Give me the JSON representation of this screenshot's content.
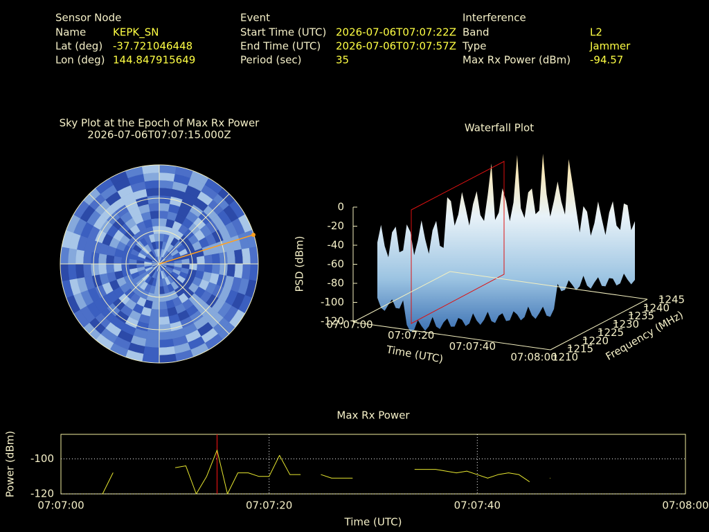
{
  "header": {
    "sensor": {
      "heading": "Sensor Node",
      "rows": [
        [
          "Name",
          "KEPK_SN"
        ],
        [
          "Lat (deg)",
          "-37.721046448"
        ],
        [
          "Lon (deg)",
          "144.847915649"
        ]
      ]
    },
    "event": {
      "heading": "Event",
      "rows": [
        [
          "Start Time (UTC)",
          "2026-07-06T07:07:22Z"
        ],
        [
          "End Time (UTC)",
          "2026-07-06T07:07:57Z"
        ],
        [
          "Period (sec)",
          "35"
        ]
      ]
    },
    "interference": {
      "heading": "Interference",
      "rows": [
        [
          "Band",
          "L2"
        ],
        [
          "Type",
          "Jammer"
        ],
        [
          "Max Rx Power (dBm)",
          "-94.57"
        ]
      ]
    }
  },
  "sky_plot": {
    "title": "Sky Plot at the Epoch of Max Rx Power",
    "subtitle": "2026-07-06T07:07:15.000Z"
  },
  "waterfall": {
    "title": "Waterfall Plot",
    "z_label": "PSD (dBm)",
    "zticks": [
      0,
      -20,
      -40,
      -60,
      -80,
      -100,
      -120
    ],
    "x_label": "Time (UTC)",
    "xticks": [
      "07:07:00",
      "07:07:20",
      "07:07:40",
      "07:08:00"
    ],
    "y_label": "Frequency (MHz)",
    "yticks": [
      1210,
      1215,
      1220,
      1225,
      1230,
      1235,
      1240,
      1245
    ]
  },
  "chart_data": {
    "type": "line",
    "title": "Max Rx Power",
    "x_label": "Time (UTC)",
    "y_label": "Power (dBm)",
    "x": [
      "07:07:04",
      "07:07:05",
      "07:07:06",
      "07:07:07",
      "07:07:08",
      "07:07:09",
      "07:07:10",
      "07:07:11",
      "07:07:12",
      "07:07:13",
      "07:07:14",
      "07:07:15",
      "07:07:16",
      "07:07:17",
      "07:07:18",
      "07:07:19",
      "07:07:20",
      "07:07:21",
      "07:07:22",
      "07:07:23",
      "07:07:24",
      "07:07:25",
      "07:07:26",
      "07:07:27",
      "07:07:28",
      "07:07:29",
      "07:07:30",
      "07:07:31",
      "07:07:32",
      "07:07:33",
      "07:07:34",
      "07:07:35",
      "07:07:36",
      "07:07:37",
      "07:07:38",
      "07:07:39",
      "07:07:40",
      "07:07:41",
      "07:07:42",
      "07:07:43",
      "07:07:44",
      "07:07:45",
      "07:07:46",
      "07:07:47"
    ],
    "series": [
      {
        "name": "Max Rx Power",
        "color": "#e8e830",
        "values": [
          -120,
          -108,
          null,
          null,
          null,
          null,
          null,
          -105,
          -104,
          -120,
          -110,
          -95,
          -120,
          -108,
          -108,
          -110,
          -110,
          -98,
          -109,
          -109,
          null,
          -109,
          -111,
          -111,
          -111,
          null,
          null,
          null,
          null,
          null,
          -106,
          -106,
          -106,
          -107,
          -108,
          -107,
          -109,
          -111,
          -109,
          -108,
          -109,
          -113,
          null,
          -111
        ]
      }
    ],
    "xlim": [
      "07:07:00",
      "07:08:00"
    ],
    "xticks": [
      "07:07:00",
      "07:07:20",
      "07:07:40",
      "07:08:00"
    ],
    "ylim": [
      -120,
      -86
    ],
    "yticks": [
      -120,
      -100
    ],
    "grid": true,
    "marker_x": "07:07:15",
    "marker_color": "#dd1111"
  }
}
